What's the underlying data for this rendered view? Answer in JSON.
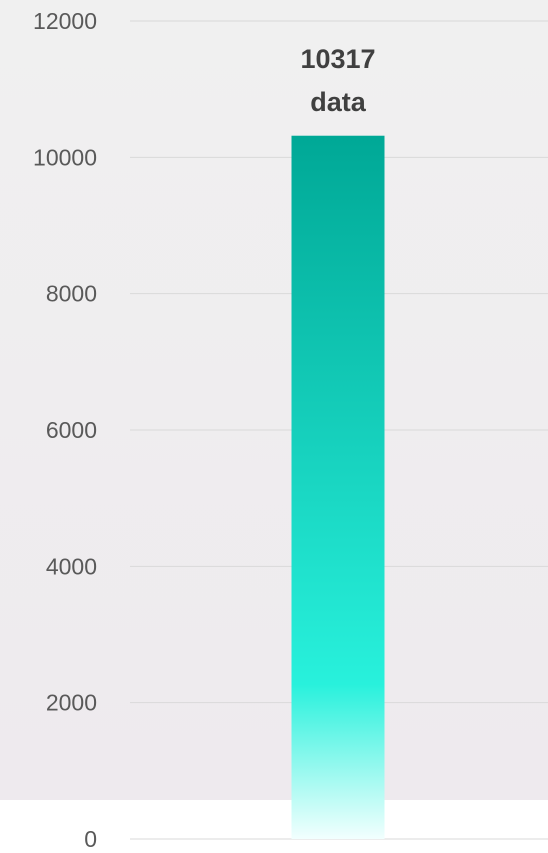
{
  "chart_data": {
    "type": "bar",
    "categories": [
      ""
    ],
    "values": [
      10317
    ],
    "data_labels": [
      "10317",
      "data"
    ],
    "y_ticks": [
      "0",
      "2000",
      "4000",
      "6000",
      "8000",
      "10000",
      "12000"
    ],
    "ylim": [
      0,
      12000
    ],
    "grid": true,
    "colors": {
      "bar_top": "#00A896",
      "bar_mid": "#28F1DC",
      "bar_bottom": "#F2FFFE",
      "axis_text": "#595959",
      "label_text": "#404040",
      "gridline": "#D9D9D9",
      "bg_top": "#F0F0F0",
      "bg_bottom": "#EEEAEE"
    }
  }
}
